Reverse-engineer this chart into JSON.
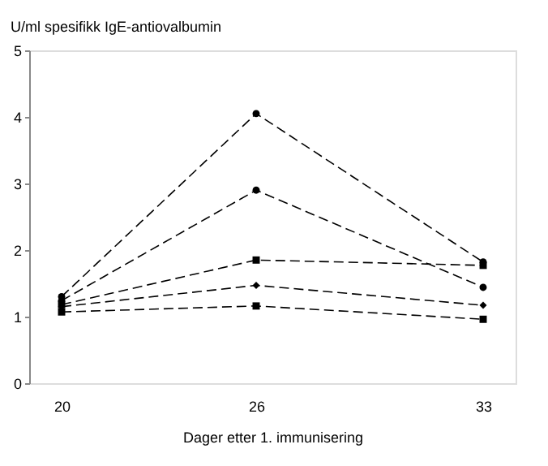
{
  "chart_data": {
    "type": "line",
    "ylabel": "U/ml spesifikk IgE-antiovalbumin",
    "xlabel": "Dager etter 1. immunisering",
    "x": [
      20,
      26,
      33
    ],
    "xlim": [
      19,
      34
    ],
    "xticks": [
      20,
      26,
      33
    ],
    "ylim": [
      0,
      5
    ],
    "yticks": [
      0,
      1,
      2,
      3,
      4,
      5
    ],
    "line_style": "dashed",
    "grid": false,
    "series": [
      {
        "color": "#000000",
        "marker": "circle",
        "values": [
          1.3,
          4.05,
          1.82
        ]
      },
      {
        "color": "#000000",
        "marker": "circle",
        "values": [
          1.24,
          2.9,
          1.44
        ]
      },
      {
        "color": "#000000",
        "marker": "square",
        "values": [
          1.18,
          1.85,
          1.77
        ]
      },
      {
        "color": "#000000",
        "marker": "diamond",
        "values": [
          1.15,
          1.47,
          1.17
        ]
      },
      {
        "color": "#000000",
        "marker": "square",
        "values": [
          1.07,
          1.16,
          0.96
        ]
      }
    ]
  }
}
